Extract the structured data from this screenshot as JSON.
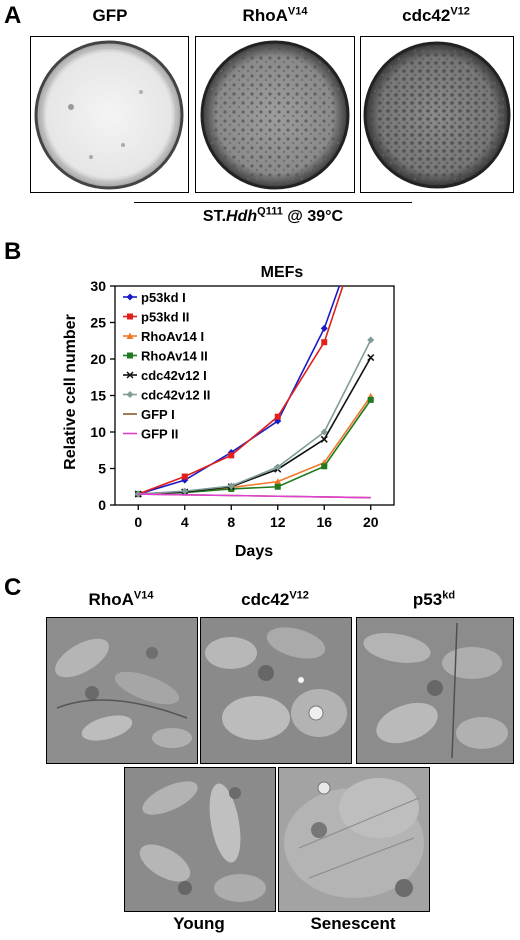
{
  "panels": {
    "a": "A",
    "b": "B",
    "c": "C"
  },
  "panel_a": {
    "dishes": [
      {
        "base": "GFP",
        "sup": ""
      },
      {
        "base": "RhoA",
        "sup": "V14"
      },
      {
        "base": "cdc42",
        "sup": "V12"
      }
    ],
    "caption": {
      "prefix": "ST.",
      "gene": "Hdh",
      "sup": "Q111",
      "suffix": " @ 39°C"
    }
  },
  "chart_data": {
    "type": "line",
    "title": "MEFs",
    "xlabel": "Days",
    "ylabel": "Relative cell number",
    "x": [
      0,
      4,
      8,
      12,
      16,
      20
    ],
    "xticks": [
      "0",
      "4",
      "8",
      "12",
      "16",
      "20"
    ],
    "yticks": [
      "0",
      "5",
      "10",
      "15",
      "20",
      "25",
      "30"
    ],
    "xlim": [
      -2,
      22
    ],
    "ylim": [
      0,
      30
    ],
    "legend_position": "top-left",
    "series": [
      {
        "name": "p53kd I",
        "color": "#1a1ac8",
        "marker": "diamond",
        "x": [
          0,
          4,
          8,
          12,
          16,
          17.3
        ],
        "values": [
          1.5,
          3.4,
          7.2,
          11.5,
          24.2,
          30
        ]
      },
      {
        "name": "p53kd II",
        "color": "#e0201c",
        "marker": "square",
        "x": [
          0,
          4,
          8,
          12,
          16,
          17.6
        ],
        "values": [
          1.5,
          3.9,
          6.8,
          12.1,
          22.3,
          30
        ]
      },
      {
        "name": "RhoAv14 I",
        "color": "#f07828",
        "marker": "triangle",
        "x": [
          0,
          4,
          8,
          12,
          16,
          20
        ],
        "values": [
          1.5,
          1.8,
          2.4,
          3.2,
          5.8,
          14.9
        ]
      },
      {
        "name": "RhoAv14 II",
        "color": "#207a20",
        "marker": "square",
        "x": [
          0,
          4,
          8,
          12,
          16,
          20
        ],
        "values": [
          1.5,
          1.7,
          2.2,
          2.5,
          5.3,
          14.4
        ]
      },
      {
        "name": "cdc42v12 I",
        "color": "#111111",
        "marker": "x",
        "x": [
          0,
          4,
          8,
          12,
          16,
          20
        ],
        "values": [
          1.5,
          1.8,
          2.5,
          4.9,
          9.0,
          20.2
        ]
      },
      {
        "name": "cdc42v12 II",
        "color": "#7f9c98",
        "marker": "diamond",
        "x": [
          0,
          4,
          8,
          12,
          16,
          20
        ],
        "values": [
          1.5,
          1.9,
          2.6,
          5.2,
          10.0,
          22.6
        ]
      },
      {
        "name": "GFP I",
        "color": "#8b5a2b",
        "marker": "none",
        "x": [
          0,
          4,
          8,
          12,
          16,
          20
        ],
        "values": [
          1.5,
          1.4,
          1.3,
          1.2,
          1.1,
          1.0
        ]
      },
      {
        "name": "GFP II",
        "color": "#e040d0",
        "marker": "none",
        "x": [
          0,
          4,
          8,
          12,
          16,
          20
        ],
        "values": [
          1.5,
          1.4,
          1.3,
          1.2,
          1.1,
          1.0
        ]
      }
    ]
  },
  "panel_c": {
    "top": [
      {
        "base": "RhoA",
        "sup": "V14"
      },
      {
        "base": "cdc42",
        "sup": "V12"
      },
      {
        "base": "p53",
        "sup": "kd"
      }
    ],
    "bottom": [
      "Young",
      "Senescent"
    ]
  }
}
